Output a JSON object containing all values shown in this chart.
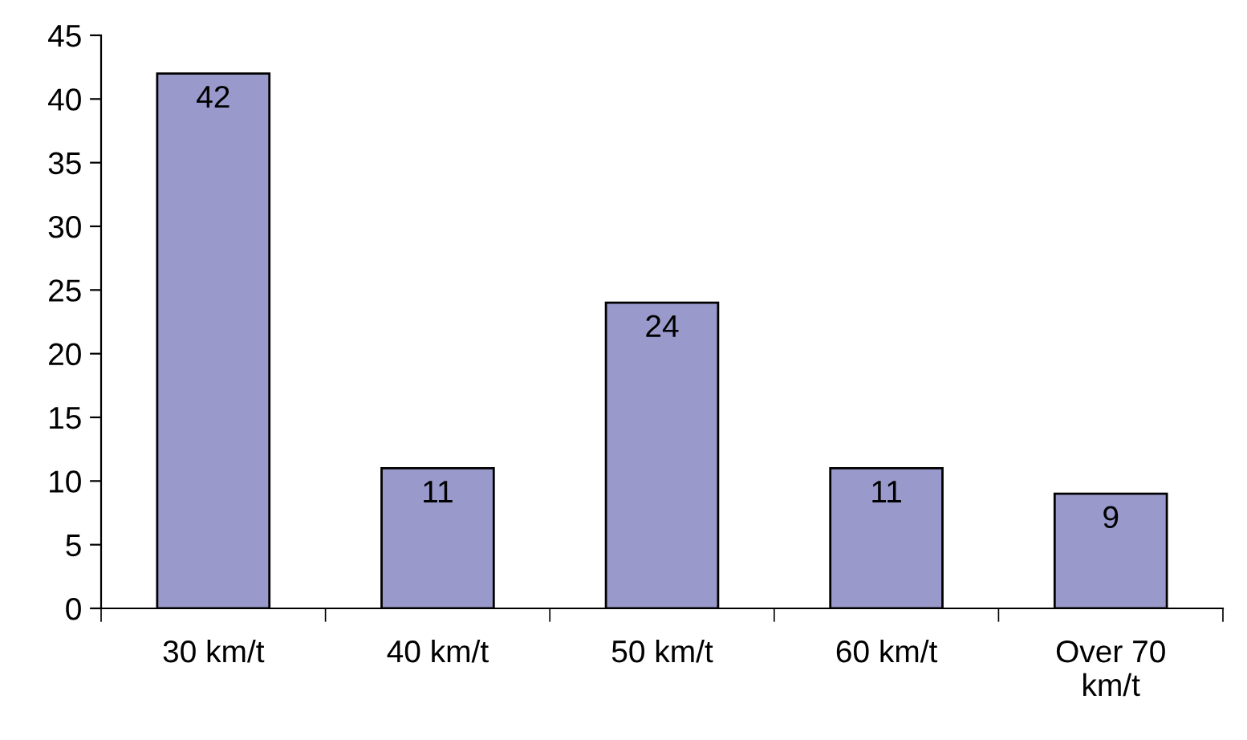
{
  "chart_data": {
    "type": "bar",
    "categories": [
      "30 km/t",
      "40 km/t",
      "50 km/t",
      "60 km/t",
      "Over 70\nkm/t"
    ],
    "values": [
      42,
      11,
      24,
      11,
      9
    ],
    "color": "#9999cc",
    "ylim": [
      0,
      45
    ],
    "yticks": [
      0,
      5,
      10,
      15,
      20,
      25,
      30,
      35,
      40,
      45
    ],
    "grid": false,
    "data_labels": true
  }
}
